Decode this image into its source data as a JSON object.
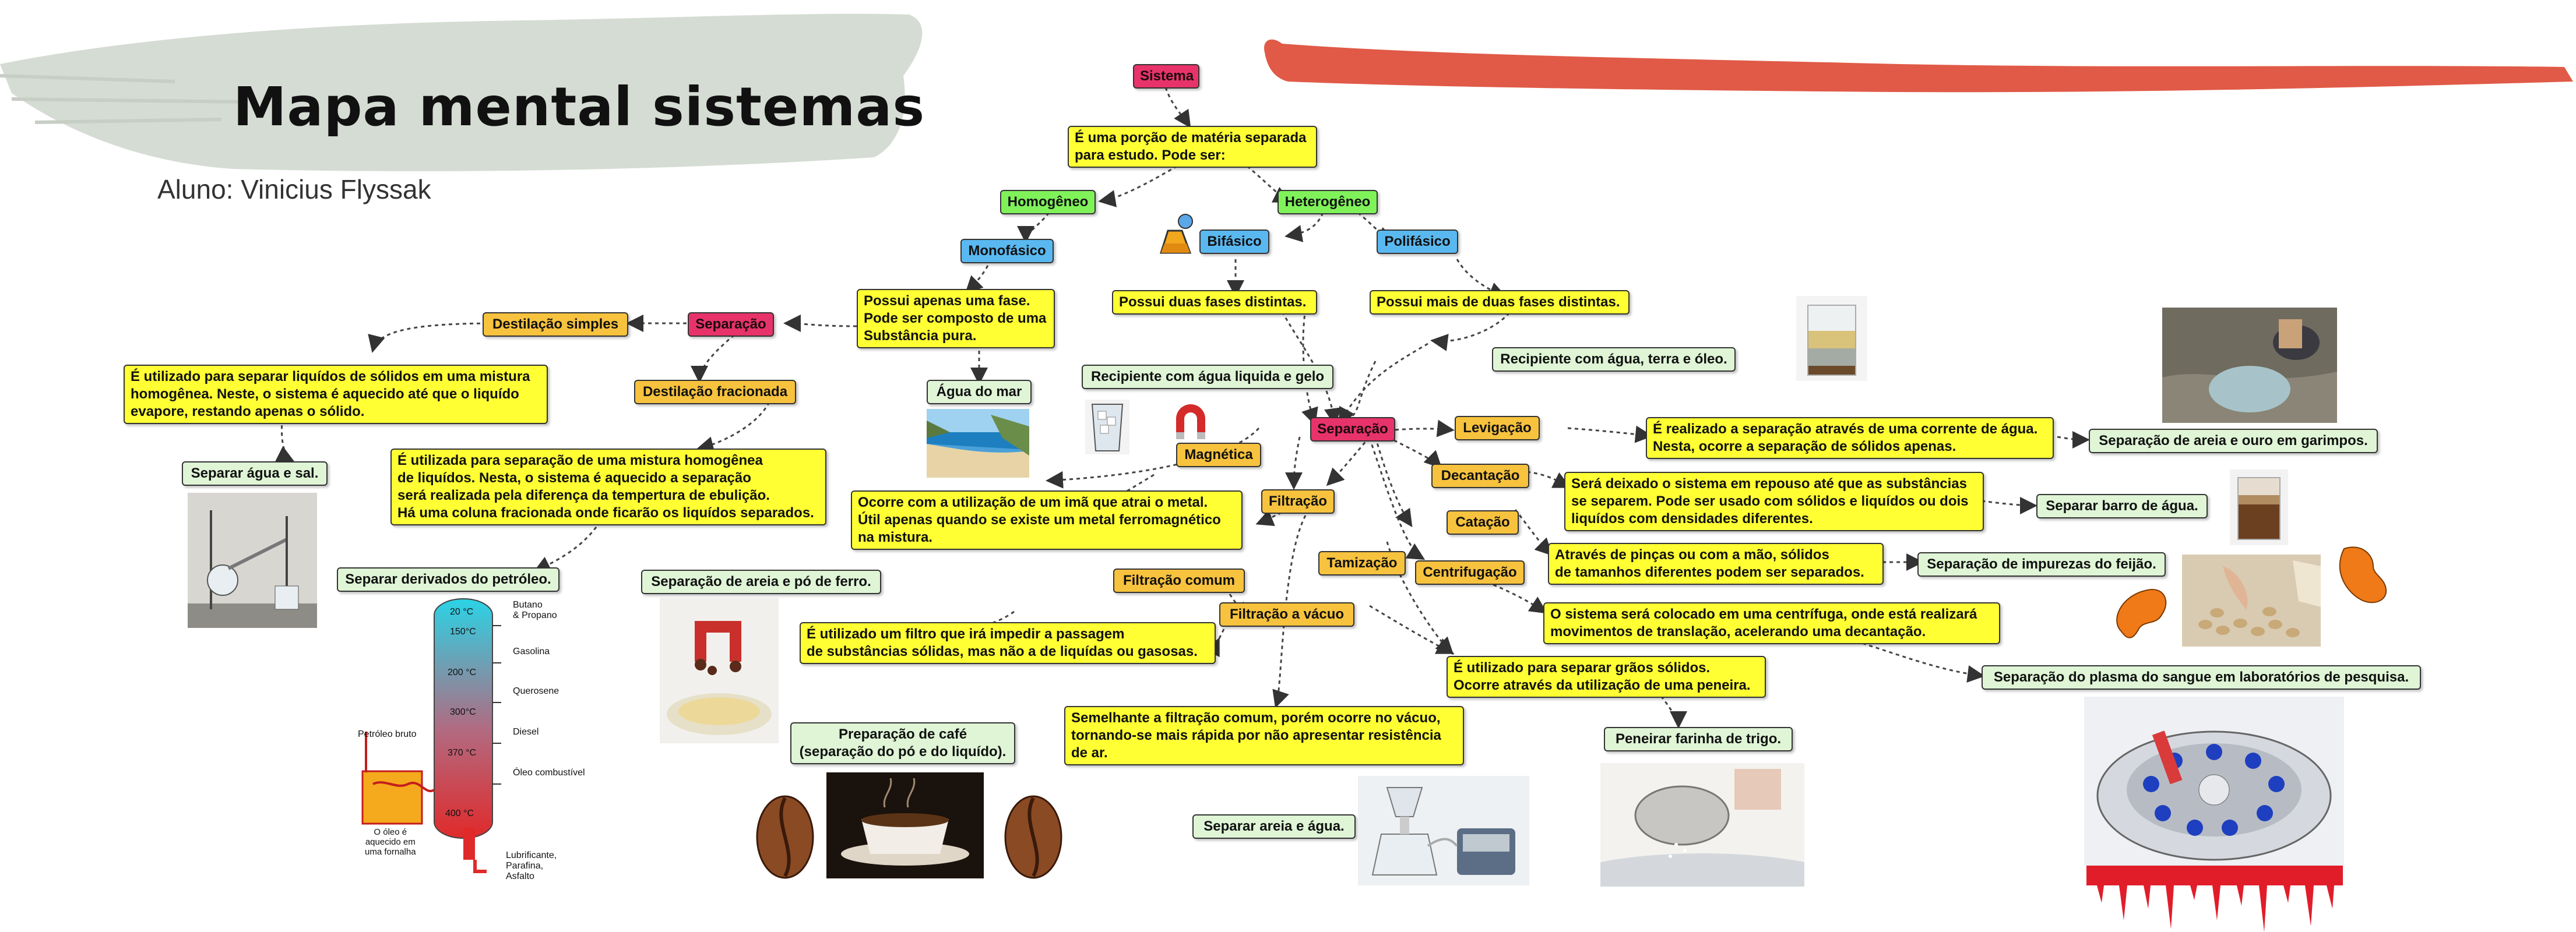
{
  "header": {
    "title": "Mapa mental sistemas",
    "student": "Aluno: Vinicius Flyssak"
  },
  "colors": {
    "tema": "#e8336a",
    "descricao": "#ffff33",
    "tipo": "#f7c23d",
    "sistema_tipo": "#7ff25a",
    "fase": "#5ab8f0",
    "exemplo": "#dff5d6",
    "brush_top": "#e05a47",
    "brush_header": "#d5dcd3"
  },
  "nodes": {
    "sistema": "Sistema",
    "def_sistema": "É uma porção de matéria separada\npara estudo. Pode ser:",
    "homogeneo": "Homogêneo",
    "heterogeneo": "Heterogêneo",
    "monofasico": "Monofásico",
    "bifasico": "Bifásico",
    "polifasico": "Polifásico",
    "mono_desc": "Possui apenas uma fase.\nPode ser composto de uma\nSubstância pura.",
    "agua_mar": "Água do mar",
    "bi_desc": "Possui duas fases distintas.",
    "bi_ex": "Recipiente com água liquida e gelo",
    "poli_desc": "Possui mais de duas fases distintas.",
    "poli_ex": "Recipiente com água, terra e óleo.",
    "separacao_homo": "Separação",
    "dest_simples": "Destilação simples",
    "dest_simples_desc": "É utilizado para separar liquídos de sólidos em uma mistura\nhomogênea. Neste, o sistema é aquecido até que o liquído\nevapore, restando apenas o sólido.",
    "dest_simples_ex": "Separar água e sal.",
    "dest_frac": "Destilação fracionada",
    "dest_frac_desc": "É utilizada para separação de uma mistura homogênea\nde liquídos. Nesta, o sistema é aquecido a separação\nserá realizada pela diferença da tempertura de ebulição.\nHá uma coluna fracionada onde ficarão os liquídos separados.",
    "dest_frac_ex": "Separar derivados do petróleo.",
    "separacao_hetero": "Separação",
    "magnetica": "Magnética",
    "magnetica_desc": "Ocorre com a utilização de um imã que atrai o metal.\nÚtil apenas quando se existe um metal ferromagnético\nna mistura.",
    "magnetica_ex": "Separação de areia e pó de ferro.",
    "filtracao": "Filtração",
    "filtracao_comum": "Filtração comum",
    "filtracao_comum_desc": "É utilizado um filtro que irá impedir a passagem\nde substâncias sólidas, mas não a de liquídas ou gasosas.",
    "filtracao_comum_ex": "Preparação de café\n(separação do pó e do liquído).",
    "filtracao_vacuo": "Filtração a vácuo",
    "filtracao_vacuo_desc": "Semelhante a filtração comum, porém ocorre no vácuo,\ntornando-se mais rápida por não apresentar resistência\nde ar.",
    "filtracao_vacuo_ex": "Separar areia e água.",
    "tamizacao": "Tamização",
    "tamizacao_desc": "É utilizado para separar grãos sólidos.\nOcorre através da utilização de uma peneira.",
    "tamizacao_ex": "Peneirar farinha de trigo.",
    "levigacao": "Levigação",
    "levigacao_desc": "É realizado a separação através de uma corrente de água.\nNesta, ocorre a separação de sólidos apenas.",
    "levigacao_ex": "Separação de areia e ouro em garimpos.",
    "decantacao": "Decantação",
    "decantacao_desc": "Será deixado o sistema em repouso até que as substâncias\nse separem. Pode ser usado com sólidos e liquídos ou dois\nliquídos com densidades diferentes.",
    "decantacao_ex": "Separar barro de água.",
    "catacao": "Catação",
    "catacao_desc": "Através de pinças ou com a mão, sólidos\nde tamanhos diferentes podem ser separados.",
    "catacao_ex": "Separação de impurezas do feijão.",
    "centrifugacao": "Centrifugação",
    "centrifugacao_desc": "O sistema será colocado em uma centrífuga, onde está realizará\nmovimentos de translação, acelerando uma decantação.",
    "centrifugacao_ex": "Separação do plasma do sangue em laboratórios de pesquisa."
  },
  "column": {
    "t20": "20 °C",
    "t150": "150°C",
    "t200": "200 °C",
    "t300": "300°C",
    "t370": "370 °C",
    "t400": "400 °C",
    "butano": "Butano\n& Propano",
    "gasolina": "Gasolina",
    "querosene": "Querosene",
    "diesel": "Diesel",
    "oleo_comb": "Óleo combustível",
    "lubrificante": "Lubrificante,\nParafina,\nAsfalto",
    "petroleo": "Petróleo bruto",
    "oleo_aquecido": "O óleo é\naquecido em\numa fornalha"
  }
}
